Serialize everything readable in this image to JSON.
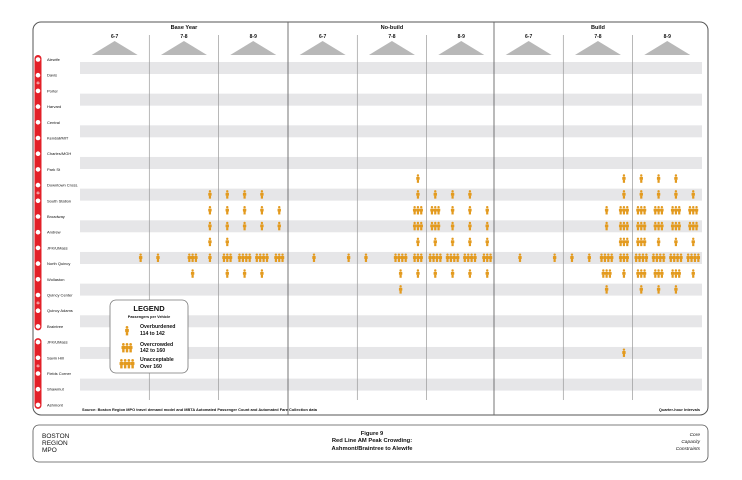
{
  "chart_data": {
    "type": "table",
    "scenarios": [
      "Base Year",
      "No-build",
      "Build"
    ],
    "hours": [
      "6-7",
      "7-8",
      "8-9"
    ],
    "quarters_per_hour": 4,
    "interval_label": "Quarter-hour Intervals",
    "stations": [
      "Alewife",
      "Davis",
      "Porter",
      "Harvard",
      "Central",
      "Kendall/MIT",
      "Charles/MGH",
      "Park St",
      "Downtown Cross.",
      "South Station",
      "Broadway",
      "Andrew",
      "JFK/UMass",
      "North Quincy",
      "Wollaston",
      "Quincy Center",
      "Quincy Adams",
      "Braintree",
      "JFK/UMass",
      "Savin Hill",
      "Fields Corner",
      "Shawmut",
      "Ashmont"
    ],
    "level_scale": {
      "0": "none",
      "1": "Overburdened",
      "2": "Overcrowded",
      "3": "Unacceptable"
    },
    "crowding": {
      "Base Year": [
        {
          "from": "Downtown Cross.",
          "to": "South Station",
          "segment": 8,
          "levels": [
            0,
            0,
            0,
            0,
            0,
            0,
            0,
            1,
            1,
            1,
            1,
            0
          ]
        },
        {
          "from": "South Station",
          "to": "Broadway",
          "segment": 9,
          "levels": [
            0,
            0,
            0,
            0,
            0,
            0,
            0,
            1,
            1,
            1,
            1,
            1
          ]
        },
        {
          "from": "Broadway",
          "to": "Andrew",
          "segment": 10,
          "levels": [
            0,
            0,
            0,
            0,
            0,
            0,
            0,
            1,
            1,
            1,
            1,
            1
          ]
        },
        {
          "from": "Andrew",
          "to": "JFK/UMass",
          "segment": 11,
          "levels": [
            0,
            0,
            0,
            0,
            0,
            0,
            0,
            1,
            1,
            0,
            0,
            0
          ]
        },
        {
          "from": "JFK/UMass",
          "to": "North Quincy",
          "segment": 12,
          "levels": [
            0,
            0,
            0,
            1,
            1,
            0,
            2,
            1,
            2,
            3,
            3,
            2
          ]
        },
        {
          "from": "North Quincy",
          "to": "Wollaston",
          "segment": 13,
          "levels": [
            0,
            0,
            0,
            0,
            0,
            0,
            1,
            0,
            1,
            1,
            1,
            0
          ]
        }
      ],
      "No-build": [
        {
          "from": "Park St",
          "to": "Downtown Cross.",
          "segment": 7,
          "levels": [
            0,
            0,
            0,
            0,
            0,
            0,
            0,
            1,
            0,
            0,
            0,
            0
          ]
        },
        {
          "from": "Downtown Cross.",
          "to": "South Station",
          "segment": 8,
          "levels": [
            0,
            0,
            0,
            0,
            0,
            0,
            0,
            1,
            1,
            1,
            1,
            0
          ]
        },
        {
          "from": "South Station",
          "to": "Broadway",
          "segment": 9,
          "levels": [
            0,
            0,
            0,
            0,
            0,
            0,
            0,
            2,
            2,
            1,
            1,
            1
          ]
        },
        {
          "from": "Broadway",
          "to": "Andrew",
          "segment": 10,
          "levels": [
            0,
            0,
            0,
            0,
            0,
            0,
            0,
            2,
            2,
            1,
            1,
            1
          ]
        },
        {
          "from": "Andrew",
          "to": "JFK/UMass",
          "segment": 11,
          "levels": [
            0,
            0,
            0,
            0,
            0,
            0,
            0,
            1,
            1,
            1,
            1,
            1
          ]
        },
        {
          "from": "JFK/UMass",
          "to": "North Quincy",
          "segment": 12,
          "levels": [
            0,
            1,
            0,
            1,
            1,
            0,
            3,
            2,
            3,
            3,
            3,
            2
          ]
        },
        {
          "from": "North Quincy",
          "to": "Wollaston",
          "segment": 13,
          "levels": [
            0,
            0,
            0,
            0,
            0,
            0,
            1,
            1,
            1,
            1,
            1,
            1
          ]
        },
        {
          "from": "Wollaston",
          "to": "Quincy Center",
          "segment": 14,
          "levels": [
            0,
            0,
            0,
            0,
            0,
            0,
            1,
            0,
            0,
            0,
            0,
            0
          ]
        }
      ],
      "Build": [
        {
          "from": "Park St",
          "to": "Downtown Cross.",
          "segment": 7,
          "levels": [
            0,
            0,
            0,
            0,
            0,
            0,
            0,
            1,
            1,
            1,
            1,
            0
          ]
        },
        {
          "from": "Downtown Cross.",
          "to": "South Station",
          "segment": 8,
          "levels": [
            0,
            0,
            0,
            0,
            0,
            0,
            0,
            1,
            1,
            1,
            1,
            1
          ]
        },
        {
          "from": "South Station",
          "to": "Broadway",
          "segment": 9,
          "levels": [
            0,
            0,
            0,
            0,
            0,
            0,
            1,
            2,
            2,
            2,
            2,
            2
          ]
        },
        {
          "from": "Broadway",
          "to": "Andrew",
          "segment": 10,
          "levels": [
            0,
            0,
            0,
            0,
            0,
            0,
            1,
            2,
            2,
            2,
            2,
            2
          ]
        },
        {
          "from": "Andrew",
          "to": "JFK/UMass",
          "segment": 11,
          "levels": [
            0,
            0,
            0,
            0,
            0,
            0,
            0,
            2,
            2,
            1,
            1,
            1
          ]
        },
        {
          "from": "JFK/UMass",
          "to": "North Quincy",
          "segment": 12,
          "levels": [
            0,
            1,
            0,
            1,
            1,
            1,
            3,
            2,
            3,
            3,
            3,
            3
          ]
        },
        {
          "from": "North Quincy",
          "to": "Wollaston",
          "segment": 13,
          "levels": [
            0,
            0,
            0,
            0,
            0,
            0,
            2,
            1,
            2,
            2,
            2,
            1
          ]
        },
        {
          "from": "Wollaston",
          "to": "Quincy Center",
          "segment": 14,
          "levels": [
            0,
            0,
            0,
            0,
            0,
            0,
            1,
            0,
            1,
            1,
            1,
            0
          ]
        },
        {
          "from": "JFK/UMass",
          "to": "Savin Hill",
          "segment": 18,
          "levels": [
            0,
            0,
            0,
            0,
            0,
            0,
            0,
            1,
            0,
            0,
            0,
            0
          ]
        }
      ]
    },
    "colors": {
      "icon": "#E39A1E",
      "line": "#E32028",
      "stripe": "#E6E6E8",
      "triangle": "#B8B8B8"
    }
  },
  "legend": {
    "title": "LEGEND",
    "subtitle": "Passengers per Vehicle",
    "items": [
      {
        "level": 1,
        "name": "Overburdened",
        "range": "114 to 142"
      },
      {
        "level": 2,
        "name": "Overcrowded",
        "range": "142 to 160"
      },
      {
        "level": 3,
        "name": "Unacceptable",
        "range": "Over 160"
      }
    ]
  },
  "source": "Source: Boston Region MPO travel demand model and MBTA Automated Passenger Count and Automated Fare Collection data",
  "footer": {
    "org": [
      "BOSTON",
      "REGION",
      "MPO"
    ],
    "figure": "Figure 9",
    "title_1": "Red Line AM Peak Crowding:",
    "title_2": "Ashmont/Braintree to Alewife",
    "series": [
      "Core",
      "Capacity",
      "Constraints"
    ]
  }
}
